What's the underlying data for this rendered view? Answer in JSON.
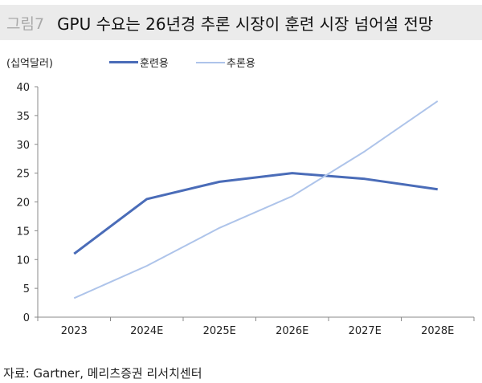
{
  "header": {
    "figure_label": "그림7",
    "title": "GPU 수요는 26년경 추론 시장이 훈련 시장 넘어설 전망"
  },
  "source": "자료: Gartner, 메리츠증권 리서치센터",
  "chart_data": {
    "type": "line",
    "title": "GPU 수요는 26년경 추론 시장이 훈련 시장 넘어설 전망",
    "ylabel": "(십억달러)",
    "categories": [
      "2023",
      "2024E",
      "2025E",
      "2026E",
      "2027E",
      "2028E"
    ],
    "ylim": [
      0,
      40
    ],
    "yticks": [
      0,
      5,
      10,
      15,
      20,
      25,
      30,
      35,
      40
    ],
    "grid": false,
    "legend_position": "top",
    "series": [
      {
        "name": "훈련용",
        "color": "#4a6cb8",
        "values": [
          11.0,
          20.5,
          23.5,
          25.0,
          24.0,
          22.2
        ]
      },
      {
        "name": "추론용",
        "color": "#aec4ea",
        "values": [
          3.3,
          8.9,
          15.5,
          21.0,
          28.8,
          37.5
        ]
      }
    ]
  }
}
